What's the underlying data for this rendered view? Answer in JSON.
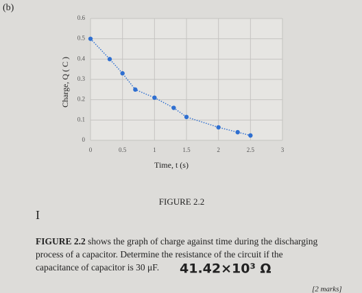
{
  "part_label": "(b)",
  "chart_data": {
    "type": "scatter",
    "x_label": "Time, t (s)",
    "y_label": "Charge, Q ( C )",
    "x": [
      0,
      0.3,
      0.5,
      0.7,
      1.0,
      1.3,
      1.5,
      2.0,
      2.3,
      2.5
    ],
    "values": [
      0.5,
      0.4,
      0.33,
      0.25,
      0.21,
      0.16,
      0.115,
      0.064,
      0.04,
      0.024
    ],
    "color": "#2f6fd0",
    "trendline": true,
    "xlim": [
      0,
      3
    ],
    "xticks": [
      0,
      0.5,
      1,
      1.5,
      2,
      2.5,
      3
    ],
    "ylim": [
      0,
      0.6
    ],
    "yticks": [
      0,
      0.1,
      0.2,
      0.3,
      0.4,
      0.5,
      0.6
    ],
    "grid": true
  },
  "caption": "FIGURE 2.2",
  "question": {
    "lead": "FIGURE 2.2",
    "lines": [
      " shows the graph of charge against time during the discharging",
      "process of a capacitor. Determine the resistance of the circuit if the",
      "capacitance of capacitor is 30 μF."
    ]
  },
  "handwritten_answer": "41.42×10³ Ω",
  "marks": "[2 marks]"
}
